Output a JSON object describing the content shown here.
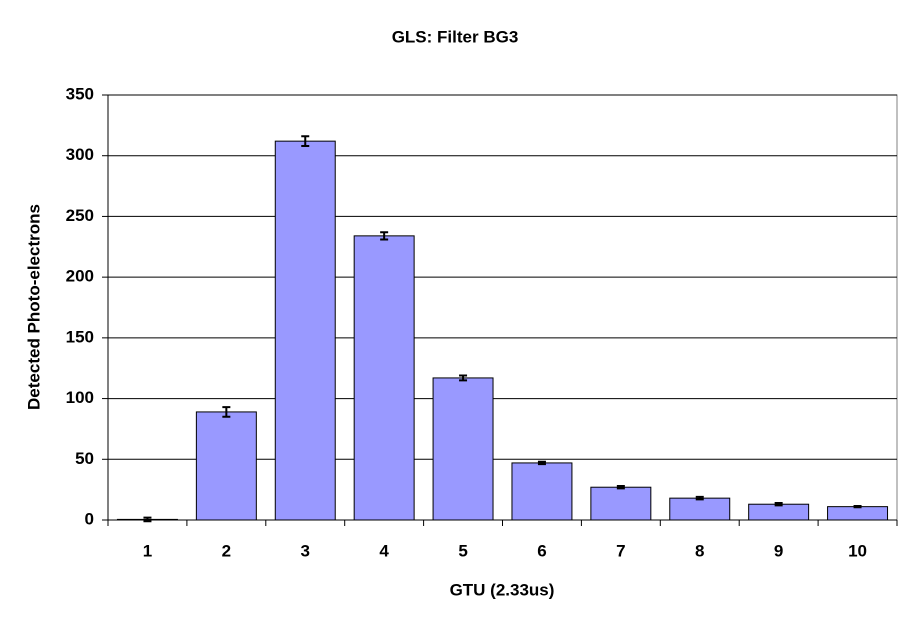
{
  "chart_data": {
    "type": "bar",
    "title": "GLS: Filter BG3",
    "x_label": "GTU (2.33us)",
    "y_label": "Detected Photo-electrons",
    "categories": [
      "1",
      "2",
      "3",
      "4",
      "5",
      "6",
      "7",
      "8",
      "9",
      "10"
    ],
    "values": [
      0.5,
      89,
      312,
      234,
      117,
      47,
      27,
      18,
      13,
      11
    ],
    "errors": [
      1.5,
      4,
      4,
      3,
      2,
      1,
      1,
      1,
      1,
      0.5
    ],
    "color": "#9999ff",
    "ylim": [
      0,
      350
    ],
    "yticks": [
      0,
      50,
      100,
      150,
      200,
      250,
      300,
      350
    ],
    "grid": true
  }
}
